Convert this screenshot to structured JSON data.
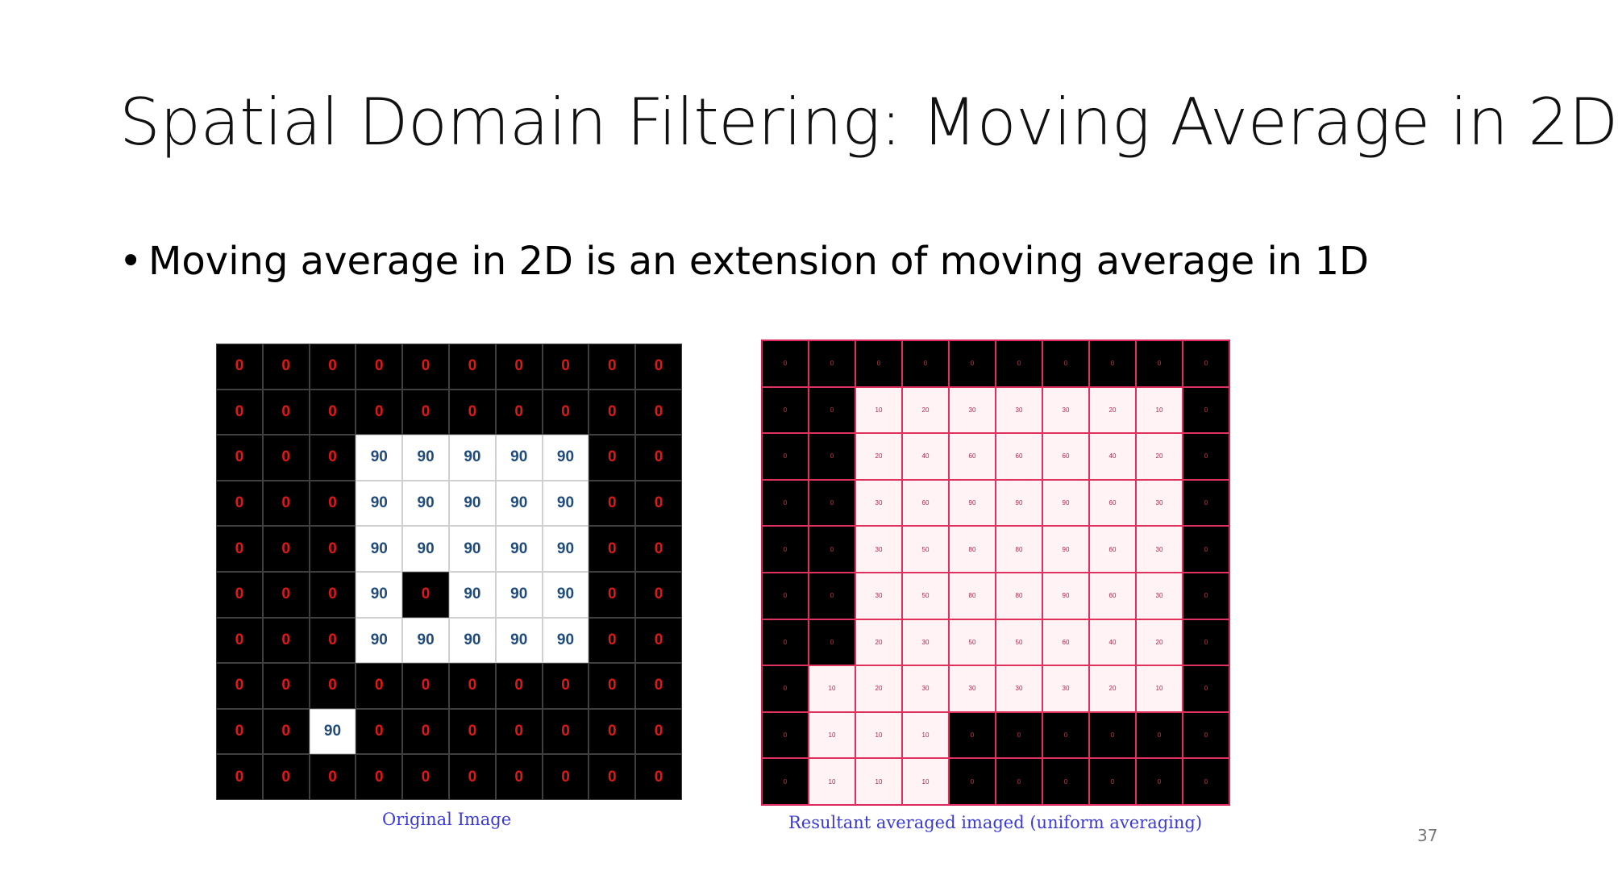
{
  "slide": {
    "title": "Spatial Domain Filtering: Moving Average in 2D",
    "bullet": "Moving average in 2D is an extension of moving average in 1D",
    "page_number": "37"
  },
  "original_image": {
    "caption": "Original Image",
    "rows": [
      [
        0,
        0,
        0,
        0,
        0,
        0,
        0,
        0,
        0,
        0
      ],
      [
        0,
        0,
        0,
        0,
        0,
        0,
        0,
        0,
        0,
        0
      ],
      [
        0,
        0,
        0,
        90,
        90,
        90,
        90,
        90,
        0,
        0
      ],
      [
        0,
        0,
        0,
        90,
        90,
        90,
        90,
        90,
        0,
        0
      ],
      [
        0,
        0,
        0,
        90,
        90,
        90,
        90,
        90,
        0,
        0
      ],
      [
        0,
        0,
        0,
        90,
        0,
        90,
        90,
        90,
        0,
        0
      ],
      [
        0,
        0,
        0,
        90,
        90,
        90,
        90,
        90,
        0,
        0
      ],
      [
        0,
        0,
        0,
        0,
        0,
        0,
        0,
        0,
        0,
        0
      ],
      [
        0,
        0,
        90,
        0,
        0,
        0,
        0,
        0,
        0,
        0
      ],
      [
        0,
        0,
        0,
        0,
        0,
        0,
        0,
        0,
        0,
        0
      ]
    ]
  },
  "averaged_image": {
    "caption": "Resultant averaged imaged (uniform averaging)",
    "rows": [
      [
        0,
        0,
        0,
        0,
        0,
        0,
        0,
        0,
        0,
        0
      ],
      [
        0,
        0,
        10,
        20,
        30,
        30,
        30,
        20,
        10,
        0
      ],
      [
        0,
        0,
        20,
        40,
        60,
        60,
        60,
        40,
        20,
        0
      ],
      [
        0,
        0,
        30,
        60,
        90,
        90,
        90,
        60,
        30,
        0
      ],
      [
        0,
        0,
        30,
        50,
        80,
        80,
        90,
        60,
        30,
        0
      ],
      [
        0,
        0,
        30,
        50,
        80,
        80,
        90,
        60,
        30,
        0
      ],
      [
        0,
        0,
        20,
        30,
        50,
        50,
        60,
        40,
        20,
        0
      ],
      [
        0,
        10,
        20,
        30,
        30,
        30,
        30,
        20,
        10,
        0
      ],
      [
        0,
        10,
        10,
        10,
        0,
        0,
        0,
        0,
        0,
        0
      ],
      [
        0,
        10,
        10,
        10,
        0,
        0,
        0,
        0,
        0,
        0
      ]
    ]
  }
}
